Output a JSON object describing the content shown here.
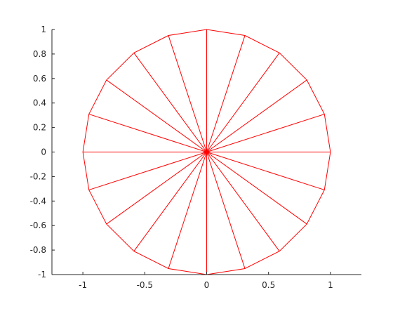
{
  "chart_data": {
    "type": "line",
    "title": "",
    "xlabel": "",
    "ylabel": "",
    "xlim": [
      -1.25,
      1.25
    ],
    "ylim": [
      -1,
      1
    ],
    "xticks": [
      -1,
      -0.5,
      0,
      0.5,
      1
    ],
    "xtick_labels": [
      "-1",
      "-0.5",
      "0",
      "0.5",
      "1"
    ],
    "yticks": [
      1,
      0.8,
      0.6,
      0.4,
      0.2,
      0,
      -0.2,
      -0.4,
      -0.6,
      -0.8,
      -1
    ],
    "ytick_labels": [
      "1",
      "0.8",
      "0.6",
      "0.4",
      "0.2",
      "0",
      "-0.2",
      "-0.4",
      "-0.6",
      "-0.8",
      "-1"
    ],
    "grid": false,
    "legend": "none",
    "line_color": "#ff0000",
    "series": [
      {
        "x": [
          1,
          0.951057,
          0.809017,
          0.587785,
          0.309017,
          0,
          -0.309017,
          -0.587785,
          -0.809017,
          -0.951057,
          -1,
          -0.951057,
          -0.809017,
          -0.587785,
          -0.309017,
          0,
          0.309017,
          0.587785,
          0.809017,
          0.951057,
          1
        ],
        "y": [
          0,
          0.309017,
          0.587785,
          0.809017,
          0.951057,
          1,
          0.951057,
          0.809017,
          0.587785,
          0.309017,
          0,
          -0.309017,
          -0.587785,
          -0.809017,
          -0.951057,
          -1,
          -0.951057,
          -0.809017,
          -0.587785,
          -0.309017,
          0
        ],
        "spokes_from": [
          0,
          0
        ]
      }
    ]
  }
}
